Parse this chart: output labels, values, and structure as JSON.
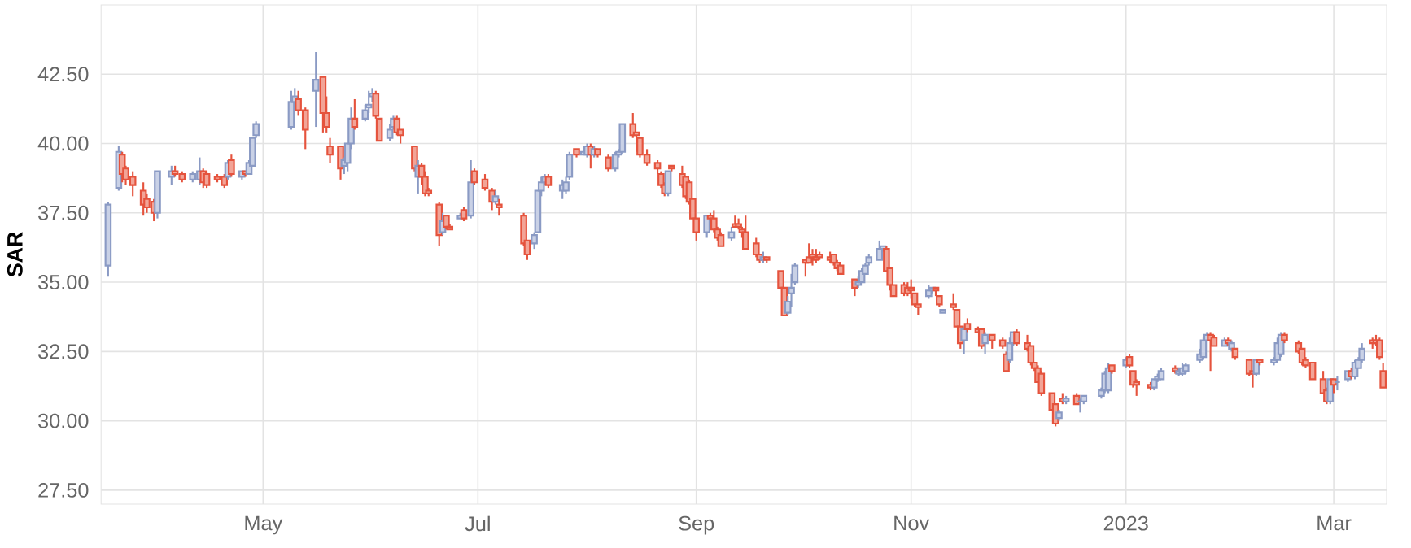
{
  "chart_data": {
    "type": "candlestick",
    "ylabel": "SAR",
    "xlim": [
      "2022-03-16",
      "2023-03-16"
    ],
    "ylim": [
      27,
      45
    ],
    "xticks": [
      {
        "value": "2022-05-01",
        "label": "May"
      },
      {
        "value": "2022-07-01",
        "label": "Jul"
      },
      {
        "value": "2022-09-01",
        "label": "Sep"
      },
      {
        "value": "2022-11-01",
        "label": "Nov"
      },
      {
        "value": "2023-01-01",
        "label": "2023"
      },
      {
        "value": "2023-03-01",
        "label": "Mar"
      }
    ],
    "yticks": [
      {
        "value": 27.5,
        "label": "27.50"
      },
      {
        "value": 30,
        "label": "30.00"
      },
      {
        "value": 32.5,
        "label": "32.50"
      },
      {
        "value": 35,
        "label": "35.00"
      },
      {
        "value": 37.5,
        "label": "37.50"
      },
      {
        "value": 40,
        "label": "40.00"
      },
      {
        "value": 42.5,
        "label": "42.50"
      }
    ],
    "grid": true,
    "x": [
      "2022-03-18",
      "2022-03-21",
      "2022-03-22",
      "2022-03-23",
      "2022-03-25",
      "2022-03-28",
      "2022-03-29",
      "2022-03-31",
      "2022-04-01",
      "2022-04-05",
      "2022-04-06",
      "2022-04-08",
      "2022-04-11",
      "2022-04-13",
      "2022-04-14",
      "2022-04-15",
      "2022-04-18",
      "2022-04-20",
      "2022-04-21",
      "2022-04-22",
      "2022-04-25",
      "2022-04-26",
      "2022-04-27",
      "2022-04-28",
      "2022-04-29",
      "2022-05-09",
      "2022-05-10",
      "2022-05-11",
      "2022-05-13",
      "2022-05-16",
      "2022-05-18",
      "2022-05-19",
      "2022-05-20",
      "2022-05-23",
      "2022-05-24",
      "2022-05-25",
      "2022-05-26",
      "2022-05-27",
      "2022-05-30",
      "2022-05-31",
      "2022-06-01",
      "2022-06-02",
      "2022-06-03",
      "2022-06-06",
      "2022-06-07",
      "2022-06-08",
      "2022-06-09",
      "2022-06-13",
      "2022-06-14",
      "2022-06-15",
      "2022-06-16",
      "2022-06-17",
      "2022-06-20",
      "2022-06-21",
      "2022-06-22",
      "2022-06-23",
      "2022-06-26",
      "2022-06-27",
      "2022-06-29",
      "2022-06-30",
      "2022-07-03",
      "2022-07-05",
      "2022-07-06",
      "2022-07-07",
      "2022-07-14",
      "2022-07-15",
      "2022-07-17",
      "2022-07-18",
      "2022-07-19",
      "2022-07-20",
      "2022-07-21",
      "2022-07-25",
      "2022-07-26",
      "2022-07-27",
      "2022-07-29",
      "2022-07-31",
      "2022-08-01",
      "2022-08-02",
      "2022-08-03",
      "2022-08-04",
      "2022-08-07",
      "2022-08-09",
      "2022-08-10",
      "2022-08-11",
      "2022-08-14",
      "2022-08-15",
      "2022-08-16",
      "2022-08-18",
      "2022-08-21",
      "2022-08-22",
      "2022-08-23",
      "2022-08-24",
      "2022-08-25",
      "2022-08-28",
      "2022-08-29",
      "2022-08-30",
      "2022-08-31",
      "2022-09-01",
      "2022-09-04",
      "2022-09-05",
      "2022-09-06",
      "2022-09-07",
      "2022-09-08",
      "2022-09-11",
      "2022-09-12",
      "2022-09-13",
      "2022-09-14",
      "2022-09-15",
      "2022-09-18",
      "2022-09-19",
      "2022-09-20",
      "2022-09-21",
      "2022-09-25",
      "2022-09-26",
      "2022-09-27",
      "2022-09-28",
      "2022-09-29",
      "2022-10-02",
      "2022-10-03",
      "2022-10-04",
      "2022-10-05",
      "2022-10-06",
      "2022-10-09",
      "2022-10-10",
      "2022-10-11",
      "2022-10-12",
      "2022-10-16",
      "2022-10-17",
      "2022-10-18",
      "2022-10-19",
      "2022-10-20",
      "2022-10-23",
      "2022-10-24",
      "2022-10-25",
      "2022-10-26",
      "2022-10-27",
      "2022-10-30",
      "2022-10-31",
      "2022-11-01",
      "2022-11-02",
      "2022-11-03",
      "2022-11-06",
      "2022-11-07",
      "2022-11-08",
      "2022-11-09",
      "2022-11-10",
      "2022-11-13",
      "2022-11-14",
      "2022-11-15",
      "2022-11-16",
      "2022-11-17",
      "2022-11-20",
      "2022-11-21",
      "2022-11-22",
      "2022-11-24",
      "2022-11-27",
      "2022-11-28",
      "2022-11-29",
      "2022-11-30",
      "2022-12-01",
      "2022-12-04",
      "2022-12-05",
      "2022-12-06",
      "2022-12-07",
      "2022-12-08",
      "2022-12-11",
      "2022-12-12",
      "2022-12-13",
      "2022-12-14",
      "2022-12-15",
      "2022-12-18",
      "2022-12-19",
      "2022-12-20",
      "2022-12-25",
      "2022-12-26",
      "2022-12-27",
      "2022-12-28",
      "2023-01-01",
      "2023-01-02",
      "2023-01-03",
      "2023-01-04",
      "2023-01-08",
      "2023-01-09",
      "2023-01-10",
      "2023-01-11",
      "2023-01-15",
      "2023-01-16",
      "2023-01-17",
      "2023-01-18",
      "2023-01-22",
      "2023-01-23",
      "2023-01-24",
      "2023-01-25",
      "2023-01-26",
      "2023-01-29",
      "2023-01-30",
      "2023-01-31",
      "2023-02-01",
      "2023-02-05",
      "2023-02-06",
      "2023-02-07",
      "2023-02-08",
      "2023-02-12",
      "2023-02-13",
      "2023-02-14",
      "2023-02-15",
      "2023-02-19",
      "2023-02-20",
      "2023-02-21",
      "2023-02-23",
      "2023-02-26",
      "2023-02-27",
      "2023-02-28",
      "2023-03-01",
      "2023-03-02",
      "2023-03-05",
      "2023-03-06",
      "2023-03-07",
      "2023-03-08",
      "2023-03-09",
      "2023-03-12",
      "2023-03-13",
      "2023-03-14",
      "2023-03-15"
    ],
    "ohlc": [
      [
        35.6,
        37.9,
        35.2,
        37.8
      ],
      [
        38.4,
        39.9,
        38.3,
        39.7
      ],
      [
        39.6,
        39.7,
        38.6,
        38.9
      ],
      [
        39.1,
        39.2,
        38.5,
        38.7
      ],
      [
        38.8,
        39.0,
        38.1,
        38.5
      ],
      [
        38.3,
        38.6,
        37.4,
        37.8
      ],
      [
        38.0,
        38.2,
        37.5,
        37.7
      ],
      [
        37.9,
        38.0,
        37.2,
        37.5
      ],
      [
        37.5,
        39.0,
        37.3,
        39.0
      ],
      [
        38.8,
        39.2,
        38.5,
        39.0
      ],
      [
        39.0,
        39.2,
        38.8,
        38.9
      ],
      [
        38.9,
        39.0,
        38.6,
        38.7
      ],
      [
        38.7,
        39.0,
        38.6,
        38.9
      ],
      [
        38.7,
        39.5,
        38.5,
        39.0
      ],
      [
        39.0,
        39.1,
        38.4,
        38.6
      ],
      [
        38.9,
        39.0,
        38.4,
        38.5
      ],
      [
        38.8,
        38.9,
        38.6,
        38.7
      ],
      [
        38.8,
        38.9,
        38.4,
        38.5
      ],
      [
        38.8,
        39.4,
        38.7,
        39.3
      ],
      [
        39.4,
        39.6,
        38.8,
        38.9
      ],
      [
        38.8,
        39.0,
        38.7,
        39.0
      ],
      [
        39.0,
        39.0,
        38.8,
        38.9
      ],
      [
        38.9,
        39.4,
        38.9,
        39.3
      ],
      [
        39.2,
        40.2,
        39.2,
        40.2
      ],
      [
        40.3,
        40.8,
        40.2,
        40.7
      ],
      [
        40.6,
        41.9,
        40.5,
        41.5
      ],
      [
        41.5,
        42.0,
        41.3,
        41.7
      ],
      [
        41.6,
        41.9,
        41.0,
        41.2
      ],
      [
        41.2,
        41.3,
        39.8,
        40.5
      ],
      [
        41.9,
        43.3,
        40.6,
        42.3
      ],
      [
        42.4,
        42.4,
        40.4,
        41.1
      ],
      [
        41.1,
        41.7,
        40.4,
        40.6
      ],
      [
        39.9,
        40.2,
        39.3,
        39.6
      ],
      [
        39.9,
        39.9,
        38.7,
        39.1
      ],
      [
        39.2,
        39.5,
        38.9,
        39.4
      ],
      [
        39.3,
        40.0,
        39.0,
        40.0
      ],
      [
        40.0,
        41.3,
        39.8,
        40.9
      ],
      [
        40.9,
        41.6,
        40.5,
        40.6
      ],
      [
        40.9,
        41.4,
        40.8,
        41.2
      ],
      [
        41.3,
        41.9,
        41.1,
        41.4
      ],
      [
        41.7,
        42.0,
        41.5,
        41.8
      ],
      [
        41.8,
        41.9,
        40.9,
        41.0
      ],
      [
        40.9,
        40.9,
        40.1,
        40.1
      ],
      [
        40.2,
        40.7,
        40.1,
        40.5
      ],
      [
        40.6,
        41.0,
        40.5,
        40.9
      ],
      [
        40.9,
        41.0,
        40.3,
        40.4
      ],
      [
        40.5,
        40.5,
        40.0,
        40.3
      ],
      [
        39.9,
        39.9,
        39.0,
        39.1
      ],
      [
        38.8,
        39.4,
        38.2,
        39.2
      ],
      [
        39.2,
        39.3,
        38.5,
        38.8
      ],
      [
        38.8,
        39.0,
        38.1,
        38.2
      ],
      [
        38.3,
        38.4,
        38.1,
        38.2
      ],
      [
        37.8,
        37.9,
        36.3,
        36.7
      ],
      [
        36.8,
        37.5,
        36.7,
        37.2
      ],
      [
        37.4,
        37.4,
        36.9,
        37.0
      ],
      [
        37.0,
        37.1,
        36.9,
        36.9
      ],
      [
        37.3,
        37.5,
        37.3,
        37.4
      ],
      [
        37.6,
        37.7,
        37.2,
        37.3
      ],
      [
        37.4,
        39.4,
        37.3,
        38.6
      ],
      [
        39.0,
        39.1,
        38.5,
        38.6
      ],
      [
        38.7,
        38.9,
        38.3,
        38.4
      ],
      [
        38.3,
        38.4,
        37.6,
        37.9
      ],
      [
        37.9,
        38.3,
        37.8,
        38.1
      ],
      [
        37.8,
        38.0,
        37.4,
        37.7
      ],
      [
        37.4,
        37.5,
        36.3,
        36.4
      ],
      [
        36.5,
        36.5,
        35.8,
        36.0
      ],
      [
        36.4,
        36.8,
        36.2,
        36.7
      ],
      [
        36.8,
        38.3,
        36.8,
        38.3
      ],
      [
        38.3,
        38.8,
        38.1,
        38.6
      ],
      [
        38.6,
        38.9,
        38.5,
        38.8
      ],
      [
        38.8,
        38.9,
        38.4,
        38.5
      ],
      [
        38.3,
        38.7,
        38.0,
        38.5
      ],
      [
        38.3,
        38.8,
        38.2,
        38.6
      ],
      [
        38.8,
        39.7,
        38.7,
        39.6
      ],
      [
        39.8,
        39.8,
        39.5,
        39.6
      ],
      [
        39.6,
        39.9,
        39.6,
        39.7
      ],
      [
        39.6,
        40.0,
        39.5,
        39.9
      ],
      [
        39.9,
        40.0,
        39.1,
        39.6
      ],
      [
        39.6,
        39.9,
        39.5,
        39.8
      ],
      [
        39.8,
        39.8,
        39.5,
        39.6
      ],
      [
        39.5,
        39.6,
        39.0,
        39.1
      ],
      [
        39.1,
        39.7,
        39.0,
        39.6
      ],
      [
        39.6,
        39.8,
        39.5,
        39.7
      ],
      [
        39.7,
        40.7,
        39.6,
        40.7
      ],
      [
        40.7,
        41.1,
        40.2,
        40.3
      ],
      [
        40.4,
        40.4,
        39.7,
        40.3
      ],
      [
        40.2,
        40.2,
        39.5,
        39.6
      ],
      [
        39.6,
        39.8,
        39.2,
        39.3
      ],
      [
        39.3,
        39.4,
        38.9,
        39.1
      ],
      [
        38.9,
        39.0,
        38.4,
        38.5
      ],
      [
        38.5,
        38.6,
        38.1,
        38.2
      ],
      [
        38.2,
        39.0,
        38.1,
        39.0
      ],
      [
        39.2,
        39.2,
        39.0,
        39.1
      ],
      [
        38.9,
        39.2,
        38.4,
        38.5
      ],
      [
        38.8,
        38.8,
        38.0,
        38.1
      ],
      [
        38.6,
        38.7,
        37.8,
        37.9
      ],
      [
        38.0,
        38.0,
        37.3,
        37.3
      ],
      [
        37.3,
        37.3,
        36.5,
        36.8
      ],
      [
        36.8,
        37.4,
        36.6,
        37.4
      ],
      [
        37.4,
        37.5,
        37.2,
        37.3
      ],
      [
        37.3,
        37.6,
        36.8,
        36.9
      ],
      [
        36.9,
        37.0,
        36.5,
        36.6
      ],
      [
        36.7,
        36.8,
        36.3,
        36.3
      ],
      [
        36.6,
        37.0,
        36.5,
        36.8
      ],
      [
        37.1,
        37.4,
        37.0,
        37.0
      ],
      [
        37.1,
        37.3,
        36.9,
        37.0
      ],
      [
        36.9,
        37.0,
        36.6,
        36.8
      ],
      [
        36.8,
        37.4,
        36.2,
        36.2
      ],
      [
        36.4,
        36.6,
        35.9,
        36.0
      ],
      [
        36.0,
        36.0,
        35.7,
        35.8
      ],
      [
        35.8,
        36.1,
        35.7,
        35.9
      ],
      [
        35.9,
        35.9,
        35.7,
        35.8
      ],
      [
        35.4,
        35.4,
        34.8,
        34.8
      ],
      [
        34.8,
        34.8,
        33.8,
        33.8
      ],
      [
        33.9,
        34.5,
        33.8,
        34.3
      ],
      [
        34.6,
        35.3,
        34.1,
        34.8
      ],
      [
        35.0,
        35.7,
        34.9,
        35.6
      ],
      [
        35.8,
        35.8,
        35.2,
        35.7
      ],
      [
        35.9,
        36.4,
        35.7,
        35.7
      ],
      [
        36.0,
        36.2,
        35.6,
        35.9
      ],
      [
        35.9,
        36.2,
        35.7,
        35.8
      ],
      [
        36.0,
        36.1,
        35.8,
        35.9
      ],
      [
        35.9,
        36.1,
        35.7,
        35.8
      ],
      [
        36.0,
        36.0,
        35.6,
        35.7
      ],
      [
        35.7,
        35.8,
        35.4,
        35.5
      ],
      [
        35.6,
        35.6,
        35.3,
        35.3
      ],
      [
        35.1,
        35.1,
        34.5,
        34.8
      ],
      [
        34.9,
        35.2,
        34.8,
        35.0
      ],
      [
        35.0,
        35.5,
        35.0,
        35.4
      ],
      [
        35.3,
        35.7,
        35.3,
        35.6
      ],
      [
        35.7,
        36.0,
        35.6,
        35.9
      ],
      [
        35.8,
        36.5,
        35.8,
        36.2
      ],
      [
        36.2,
        36.3,
        36.1,
        36.3
      ],
      [
        36.2,
        36.3,
        35.4,
        35.4
      ],
      [
        35.5,
        35.5,
        34.7,
        34.9
      ],
      [
        34.9,
        34.9,
        34.5,
        34.5
      ],
      [
        34.9,
        35.0,
        34.5,
        34.6
      ],
      [
        34.8,
        35.0,
        34.5,
        34.6
      ],
      [
        34.8,
        35.1,
        34.4,
        34.7
      ],
      [
        34.6,
        34.6,
        34.1,
        34.2
      ],
      [
        34.2,
        34.2,
        33.8,
        34.1
      ],
      [
        34.5,
        34.9,
        34.4,
        34.7
      ],
      [
        34.7,
        34.8,
        34.6,
        34.8
      ],
      [
        34.8,
        34.8,
        34.5,
        34.7
      ],
      [
        34.5,
        34.5,
        34.1,
        34.2
      ],
      [
        33.9,
        34.0,
        33.9,
        34.0
      ],
      [
        34.2,
        34.6,
        34.0,
        34.1
      ],
      [
        34.0,
        34.0,
        33.4,
        33.4
      ],
      [
        33.4,
        33.4,
        32.6,
        32.8
      ],
      [
        32.9,
        33.4,
        32.4,
        33.3
      ],
      [
        33.5,
        33.7,
        33.2,
        33.3
      ],
      [
        33.3,
        33.4,
        33.2,
        33.2
      ],
      [
        33.3,
        33.3,
        32.6,
        32.7
      ],
      [
        32.8,
        33.2,
        32.4,
        33.1
      ],
      [
        33.1,
        33.1,
        32.6,
        32.9
      ],
      [
        32.9,
        33.0,
        32.6,
        32.7
      ],
      [
        32.4,
        32.5,
        31.8,
        31.8
      ],
      [
        32.2,
        33.0,
        32.1,
        32.8
      ],
      [
        32.8,
        33.2,
        32.7,
        33.2
      ],
      [
        33.2,
        33.3,
        32.7,
        32.8
      ],
      [
        32.8,
        33.1,
        32.5,
        32.6
      ],
      [
        32.7,
        32.7,
        32.0,
        32.1
      ],
      [
        32.1,
        32.1,
        31.8,
        31.9
      ],
      [
        31.9,
        32.0,
        31.4,
        31.4
      ],
      [
        31.7,
        31.8,
        30.9,
        31.0
      ],
      [
        31.0,
        31.0,
        30.4,
        30.4
      ],
      [
        30.6,
        30.6,
        29.8,
        29.9
      ],
      [
        30.1,
        30.4,
        30.0,
        30.3
      ],
      [
        30.8,
        31.0,
        30.6,
        30.7
      ],
      [
        30.7,
        30.9,
        30.6,
        30.8
      ],
      [
        30.9,
        31.0,
        30.6,
        30.6
      ],
      [
        30.7,
        30.8,
        30.3,
        30.7
      ],
      [
        30.7,
        30.9,
        30.6,
        30.9
      ],
      [
        30.9,
        31.2,
        30.8,
        31.1
      ],
      [
        31.1,
        31.8,
        31.0,
        31.7
      ],
      [
        31.1,
        32.1,
        31.0,
        31.9
      ],
      [
        32.0,
        32.0,
        31.7,
        31.8
      ],
      [
        32.0,
        32.3,
        31.9,
        32.2
      ],
      [
        32.3,
        32.4,
        31.9,
        32.0
      ],
      [
        31.8,
        31.8,
        31.2,
        31.3
      ],
      [
        31.4,
        31.5,
        30.9,
        31.3
      ],
      [
        31.3,
        31.4,
        31.1,
        31.2
      ],
      [
        31.2,
        31.5,
        31.1,
        31.5
      ],
      [
        31.5,
        31.7,
        31.4,
        31.6
      ],
      [
        31.5,
        31.9,
        31.5,
        31.8
      ],
      [
        31.9,
        32.0,
        31.7,
        31.8
      ],
      [
        31.7,
        31.9,
        31.6,
        31.8
      ],
      [
        31.7,
        32.1,
        31.6,
        31.9
      ],
      [
        31.8,
        32.1,
        31.7,
        32.0
      ],
      [
        32.2,
        32.6,
        32.1,
        32.4
      ],
      [
        32.3,
        33.0,
        32.2,
        32.9
      ],
      [
        32.9,
        33.2,
        32.9,
        33.1
      ],
      [
        33.1,
        33.2,
        31.8,
        32.9
      ],
      [
        33.0,
        33.1,
        32.7,
        32.7
      ],
      [
        32.7,
        33.0,
        32.7,
        32.9
      ],
      [
        32.9,
        33.0,
        32.7,
        32.8
      ],
      [
        32.6,
        32.9,
        32.5,
        32.8
      ],
      [
        32.6,
        32.6,
        32.2,
        32.3
      ],
      [
        32.2,
        32.2,
        31.6,
        31.7
      ],
      [
        31.8,
        31.8,
        31.2,
        31.7
      ],
      [
        31.7,
        32.2,
        31.6,
        32.2
      ],
      [
        32.2,
        32.2,
        32.0,
        32.1
      ],
      [
        32.1,
        32.3,
        32.0,
        32.2
      ],
      [
        32.2,
        33.0,
        32.1,
        32.8
      ],
      [
        32.4,
        33.2,
        32.3,
        33.1
      ],
      [
        33.1,
        33.2,
        32.8,
        32.9
      ],
      [
        32.8,
        32.9,
        32.4,
        32.5
      ],
      [
        32.6,
        32.6,
        32.0,
        32.1
      ],
      [
        32.2,
        32.3,
        31.9,
        32.0
      ],
      [
        32.1,
        32.1,
        31.5,
        31.5
      ],
      [
        31.5,
        31.8,
        31.0,
        31.0
      ],
      [
        31.1,
        31.2,
        30.6,
        30.7
      ],
      [
        30.7,
        31.5,
        30.6,
        31.5
      ],
      [
        31.5,
        31.5,
        31.0,
        31.3
      ],
      [
        31.4,
        31.6,
        31.1,
        31.4
      ],
      [
        31.5,
        31.8,
        31.4,
        31.8
      ],
      [
        31.8,
        31.9,
        31.5,
        31.6
      ],
      [
        31.6,
        32.2,
        31.5,
        32.1
      ],
      [
        31.9,
        32.3,
        31.9,
        32.2
      ],
      [
        32.2,
        32.8,
        32.1,
        32.6
      ],
      [
        32.9,
        33.0,
        32.6,
        32.8
      ],
      [
        32.9,
        33.1,
        32.7,
        32.8
      ],
      [
        32.9,
        33.0,
        32.2,
        32.3
      ],
      [
        31.8,
        32.1,
        31.2,
        31.2
      ]
    ]
  }
}
